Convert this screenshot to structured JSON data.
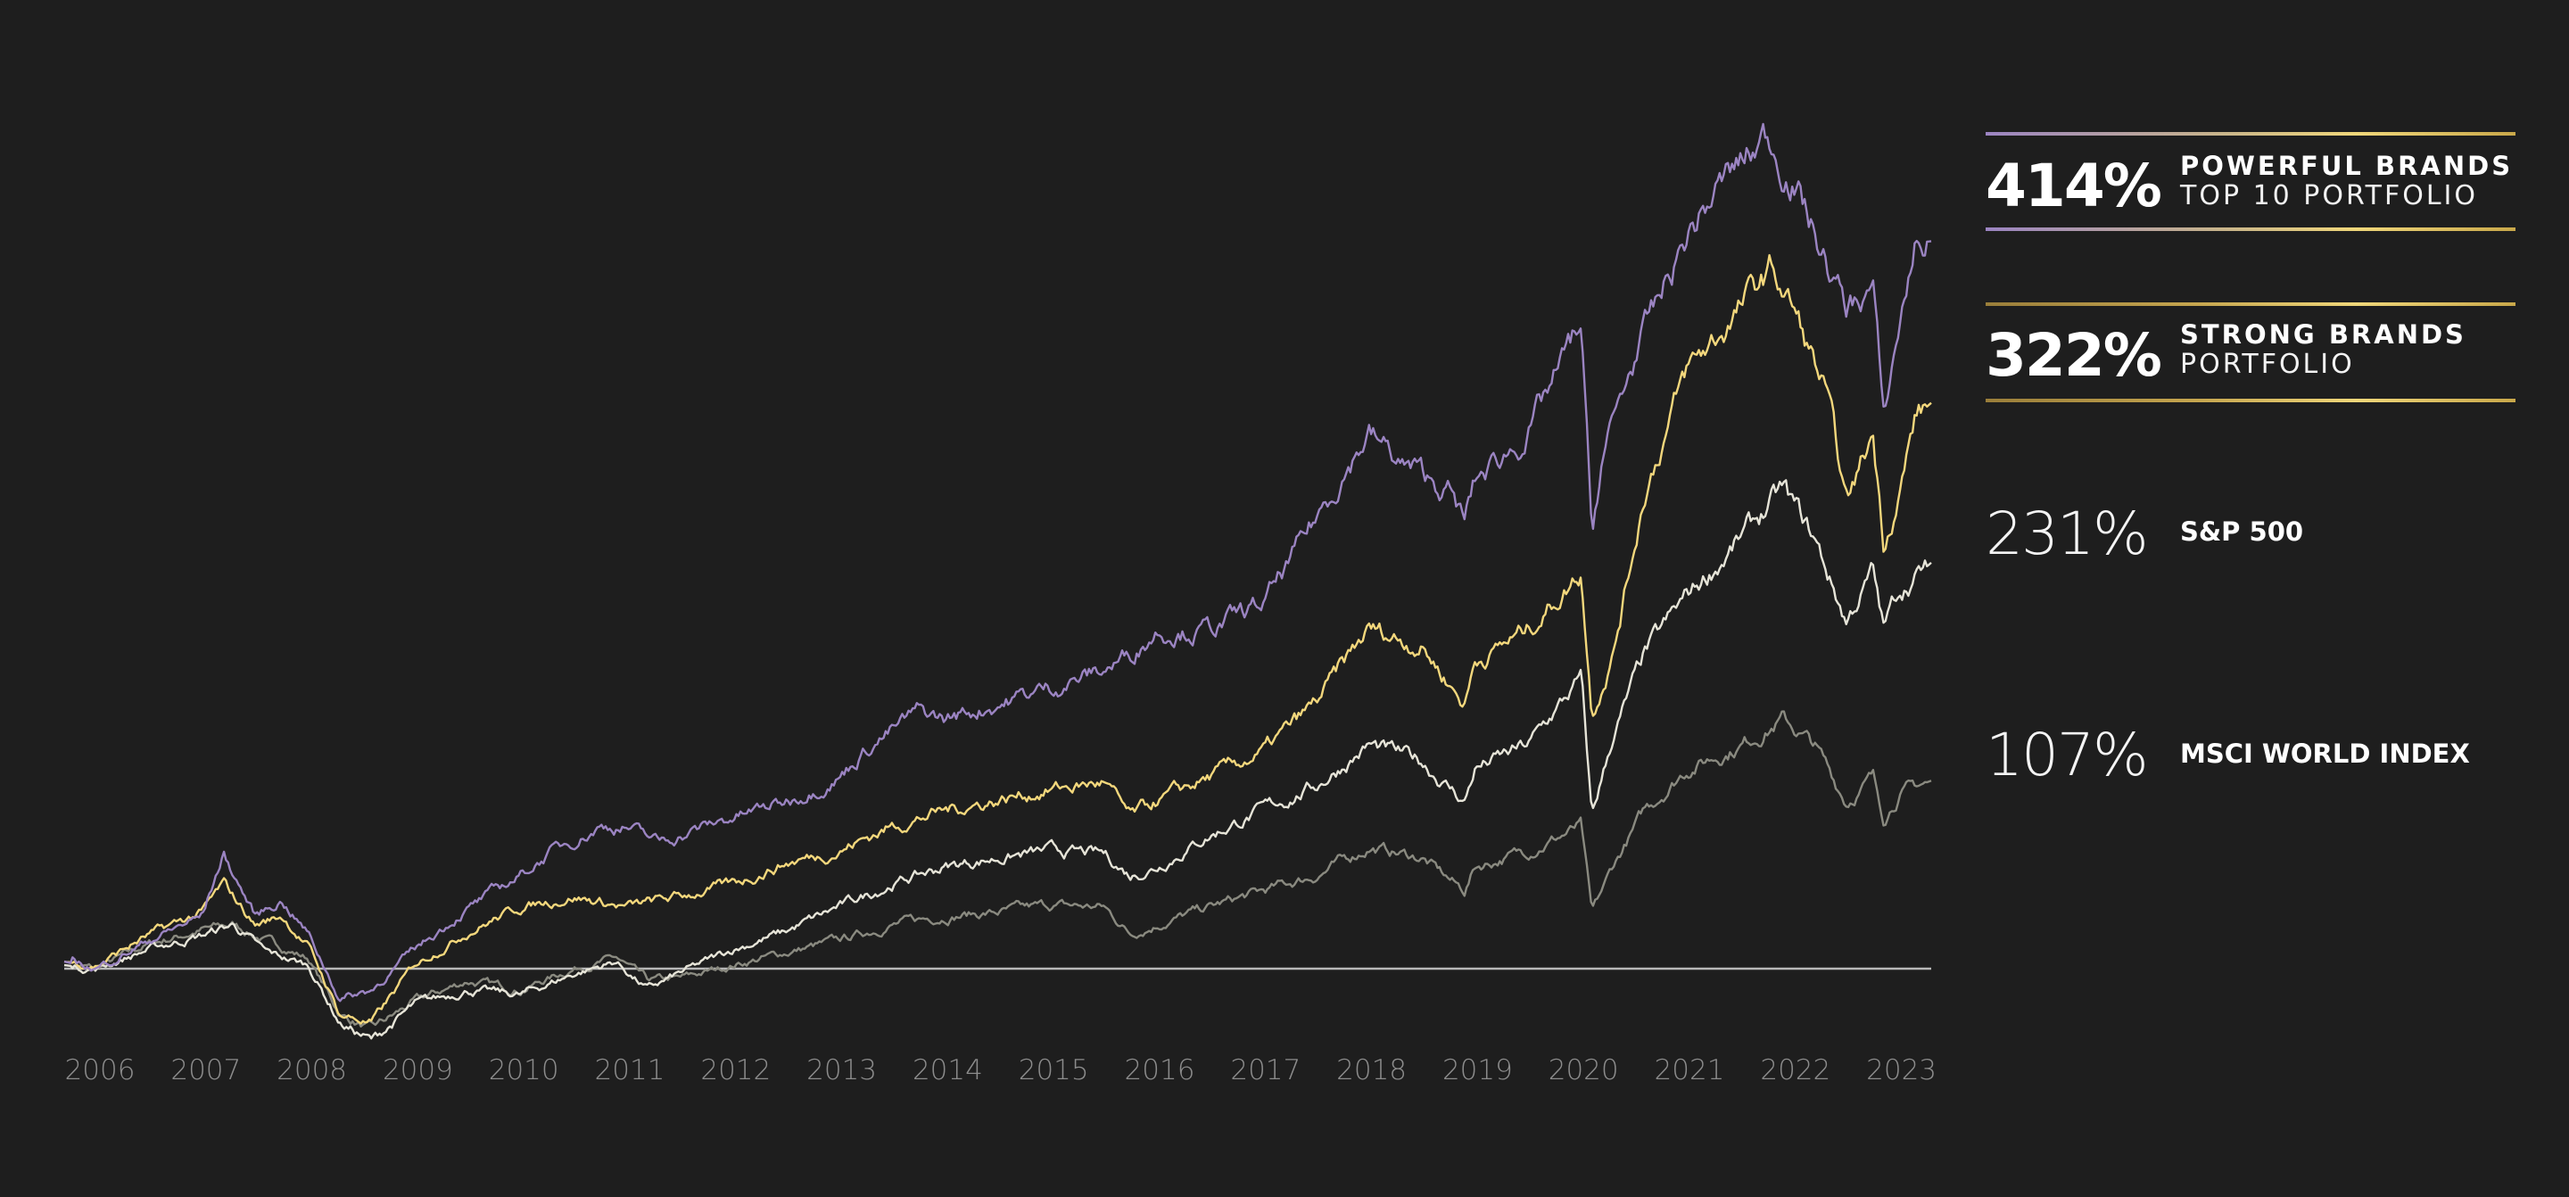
{
  "chart_data": {
    "type": "line",
    "title": "",
    "xlabel": "",
    "ylabel": "",
    "x_ticks": [
      "2006",
      "2007",
      "2008",
      "2009",
      "2010",
      "2011",
      "2012",
      "2013",
      "2014",
      "2015",
      "2016",
      "2017",
      "2018",
      "2019",
      "2020",
      "2021",
      "2022",
      "2023"
    ],
    "xlim": [
      2005.7,
      2023.3
    ],
    "ylim": [
      -60,
      480
    ],
    "y_unit": "% cumulative return",
    "baseline": 0,
    "grid": false,
    "legend_position": "right",
    "series": [
      {
        "name": "POWERFUL BRANDS TOP 10 PORTFOLIO",
        "color": "#9b84c2",
        "final": "414%",
        "x": [
          2005.7,
          2006.0,
          2006.5,
          2007.0,
          2007.2,
          2007.5,
          2007.75,
          2008.0,
          2008.3,
          2008.6,
          2009.0,
          2009.5,
          2010.0,
          2010.3,
          2010.75,
          2011.0,
          2011.3,
          2011.75,
          2012.0,
          2012.5,
          2013.0,
          2013.3,
          2013.75,
          2014.0,
          2014.5,
          2015.0,
          2015.5,
          2015.75,
          2016.0,
          2016.5,
          2017.0,
          2017.3,
          2017.75,
          2018.0,
          2018.3,
          2018.75,
          2018.9,
          2019.0,
          2019.5,
          2020.0,
          2020.1,
          2020.2,
          2020.5,
          2021.0,
          2021.3,
          2021.75,
          2022.0,
          2022.3,
          2022.5,
          2022.75,
          2022.85,
          2023.0,
          2023.15,
          2023.3
        ],
        "values": [
          4,
          0,
          16,
          30,
          65,
          30,
          39,
          20,
          -17,
          -12,
          11,
          34,
          53,
          67,
          81,
          81,
          72,
          81,
          86,
          95,
          109,
          127,
          146,
          142,
          151,
          160,
          170,
          179,
          193,
          193,
          207,
          235,
          282,
          305,
          287,
          272,
          254,
          277,
          305,
          366,
          244,
          291,
          347,
          417,
          445,
          473,
          450,
          403,
          375,
          389,
          310,
          366,
          413,
          414
        ]
      },
      {
        "name": "STRONG BRANDS PORTFOLIO",
        "color": "#f3d77c",
        "final": "322%",
        "x": [
          2005.7,
          2006.0,
          2006.5,
          2007.0,
          2007.2,
          2007.5,
          2007.75,
          2008.0,
          2008.3,
          2008.6,
          2009.0,
          2009.5,
          2010.0,
          2010.5,
          2011.0,
          2011.5,
          2012.0,
          2012.5,
          2013.0,
          2013.5,
          2014.0,
          2014.5,
          2015.0,
          2015.5,
          2015.75,
          2016.0,
          2016.5,
          2017.0,
          2017.5,
          2018.0,
          2018.5,
          2018.9,
          2019.0,
          2019.5,
          2020.0,
          2020.1,
          2020.3,
          2020.6,
          2021.0,
          2021.4,
          2021.8,
          2022.0,
          2022.3,
          2022.5,
          2022.75,
          2022.85,
          2023.0,
          2023.15,
          2023.3
        ],
        "values": [
          4,
          2,
          19,
          32,
          48,
          25,
          30,
          13,
          -26,
          -31,
          2,
          21,
          35,
          41,
          35,
          41,
          48,
          60,
          67,
          81,
          90,
          96,
          102,
          106,
          86,
          95,
          109,
          123,
          151,
          193,
          184,
          151,
          175,
          193,
          226,
          147,
          179,
          272,
          340,
          368,
          398,
          375,
          328,
          263,
          305,
          244,
          272,
          314,
          322
        ]
      },
      {
        "name": "S&P 500",
        "color": "#e6e4d8",
        "final": "231%",
        "x": [
          2005.7,
          2006.0,
          2006.5,
          2007.0,
          2007.3,
          2007.6,
          2008.0,
          2008.3,
          2008.6,
          2009.0,
          2009.5,
          2010.0,
          2010.5,
          2010.9,
          2011.2,
          2011.5,
          2012.0,
          2012.5,
          2013.0,
          2013.5,
          2014.0,
          2014.5,
          2015.0,
          2015.5,
          2015.75,
          2016.0,
          2016.5,
          2017.0,
          2017.5,
          2018.0,
          2018.5,
          2018.9,
          2019.0,
          2019.5,
          2020.0,
          2020.1,
          2020.3,
          2020.6,
          2021.0,
          2021.5,
          2021.9,
          2022.2,
          2022.5,
          2022.75,
          2022.85,
          2023.0,
          2023.3
        ],
        "values": [
          2,
          0,
          11,
          19,
          25,
          9,
          2,
          -31,
          -41,
          -21,
          -12,
          -15,
          -3,
          4,
          -12,
          -3,
          11,
          21,
          35,
          48,
          58,
          63,
          67,
          65,
          53,
          58,
          76,
          90,
          104,
          127,
          118,
          95,
          114,
          127,
          165,
          86,
          132,
          179,
          212,
          244,
          272,
          244,
          198,
          226,
          193,
          216,
          231
        ]
      },
      {
        "name": "MSCI WORLD INDEX",
        "color": "#8a8a80",
        "final": "107%",
        "x": [
          2005.7,
          2006.0,
          2006.5,
          2007.0,
          2007.3,
          2007.6,
          2008.0,
          2008.3,
          2008.6,
          2009.0,
          2009.5,
          2010.0,
          2010.5,
          2010.9,
          2011.2,
          2011.5,
          2012.0,
          2012.5,
          2013.0,
          2013.5,
          2014.0,
          2014.5,
          2015.0,
          2015.5,
          2015.75,
          2016.0,
          2016.5,
          2017.0,
          2017.5,
          2018.0,
          2018.5,
          2018.9,
          2019.0,
          2019.5,
          2020.0,
          2020.1,
          2020.3,
          2020.6,
          2021.0,
          2021.5,
          2021.9,
          2022.2,
          2022.5,
          2022.75,
          2022.85,
          2023.0,
          2023.3
        ],
        "values": [
          2,
          0,
          14,
          22,
          25,
          16,
          6,
          -26,
          -35,
          -19,
          -7,
          -12,
          0,
          6,
          -7,
          -6,
          2,
          9,
          16,
          25,
          30,
          32,
          36,
          35,
          20,
          25,
          35,
          44,
          53,
          69,
          63,
          44,
          58,
          67,
          81,
          30,
          58,
          90,
          114,
          127,
          142,
          127,
          95,
          109,
          86,
          100,
          107
        ]
      }
    ]
  },
  "legend": [
    {
      "value": "414%",
      "title": "POWERFUL BRANDS",
      "subtitle": "TOP 10 PORTFOLIO"
    },
    {
      "value": "322%",
      "title": "STRONG BRANDS",
      "subtitle": "PORTFOLIO"
    },
    {
      "value": "231%",
      "title": "S&P 500"
    },
    {
      "value": "107%",
      "title": "MSCI WORLD INDEX"
    }
  ]
}
